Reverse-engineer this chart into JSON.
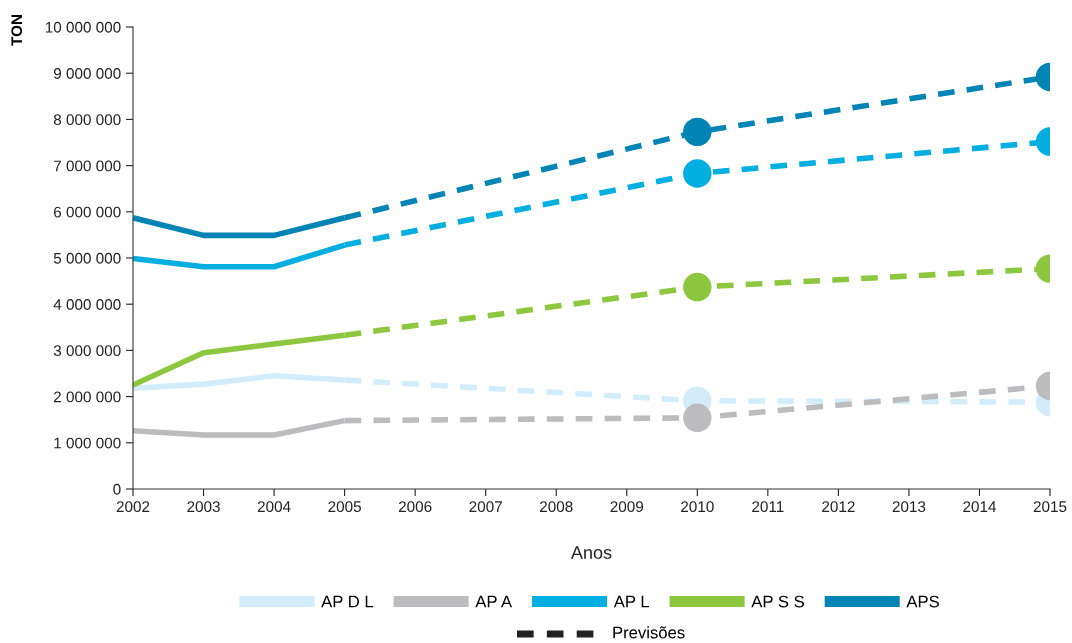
{
  "chart_data": {
    "type": "line",
    "xlabel": "Anos",
    "ylabel": "TON",
    "xlim": [
      2002,
      2015
    ],
    "xticks": [
      2002,
      2003,
      2004,
      2005,
      2006,
      2007,
      2008,
      2009,
      2010,
      2011,
      2012,
      2013,
      2014,
      2015
    ],
    "ylim": [
      0,
      10000000
    ],
    "yticks": [
      0,
      {
        "value": 1000000,
        "label": "1 000 000"
      },
      {
        "value": 2000000,
        "label": "2 000 000"
      },
      {
        "value": 3000000,
        "label": "3 000 000"
      },
      {
        "value": 4000000,
        "label": "4 000 000"
      },
      {
        "value": 5000000,
        "label": "5 000 000"
      },
      {
        "value": 6000000,
        "label": "6 000 000"
      },
      {
        "value": 7000000,
        "label": "7 000 000"
      },
      {
        "value": 8000000,
        "label": "8 000 000"
      },
      {
        "value": 9000000,
        "label": "9 000 000"
      },
      {
        "value": 10000000,
        "label": "10 000 000"
      }
    ],
    "grid": false,
    "legend": "bottom",
    "marker": "none",
    "line_style": "solid",
    "annotations": [
      "Previsões"
    ],
    "series": [
      {
        "name": "AP D L",
        "color": "#d3ecf9",
        "x": [
          2002,
          2003,
          2004,
          2005
        ],
        "values": [
          2180000,
          2270000,
          2450000,
          2360000
        ]
      },
      {
        "color": "#d3ecf9",
        "line_style": "dashed",
        "x": [
          2005,
          2010,
          2015
        ],
        "values": [
          2360000,
          1910000,
          1880000
        ]
      },
      {
        "type": "scatter",
        "marker": "circle",
        "color": "#d3ecf9",
        "x": [
          2010,
          2015
        ],
        "values": [
          1910000,
          1880000
        ]
      },
      {
        "name": "AP A",
        "color": "#bcbcbf",
        "x": [
          2002,
          2003,
          2004,
          2005
        ],
        "values": [
          1260000,
          1170000,
          1170000,
          1480000
        ]
      },
      {
        "color": "#bcbcbf",
        "line_style": "dashed",
        "x": [
          2005,
          2010,
          2015
        ],
        "values": [
          1480000,
          1540000,
          2230000
        ]
      },
      {
        "type": "scatter",
        "marker": "circle",
        "color": "#bcbcbf",
        "x": [
          2010,
          2015
        ],
        "values": [
          1540000,
          2230000
        ]
      },
      {
        "name": "AP L",
        "color": "#00aedf",
        "x": [
          2002,
          2003,
          2004,
          2005
        ],
        "values": [
          4990000,
          4810000,
          4810000,
          5280000
        ]
      },
      {
        "color": "#00aedf",
        "line_style": "dashed",
        "x": [
          2005,
          2010,
          2015
        ],
        "values": [
          5280000,
          6830000,
          7520000
        ]
      },
      {
        "type": "scatter",
        "marker": "circle",
        "color": "#00aedf",
        "x": [
          2010,
          2015
        ],
        "values": [
          6830000,
          7520000
        ]
      },
      {
        "name": "AP S S",
        "color": "#8dc63f",
        "x": [
          2002,
          2003,
          2004,
          2005
        ],
        "values": [
          2250000,
          2950000,
          3140000,
          3330000
        ]
      },
      {
        "color": "#8dc63f",
        "line_style": "dashed",
        "x": [
          2005,
          2010,
          2015
        ],
        "values": [
          3330000,
          4370000,
          4770000
        ]
      },
      {
        "type": "scatter",
        "marker": "circle",
        "color": "#8dc63f",
        "x": [
          2010,
          2015
        ],
        "values": [
          4370000,
          4770000
        ]
      },
      {
        "name": "APS",
        "color": "#0083b5",
        "x": [
          2002,
          2003,
          2004,
          2005
        ],
        "values": [
          5870000,
          5490000,
          5490000,
          5870000
        ]
      },
      {
        "color": "#0083b5",
        "line_style": "dashed",
        "x": [
          2005,
          2010,
          2015
        ],
        "values": [
          5870000,
          7730000,
          8920000
        ]
      },
      {
        "type": "scatter",
        "marker": "circle",
        "color": "#0083b5",
        "x": [
          2010,
          2015
        ],
        "values": [
          7730000,
          8920000
        ]
      }
    ]
  }
}
